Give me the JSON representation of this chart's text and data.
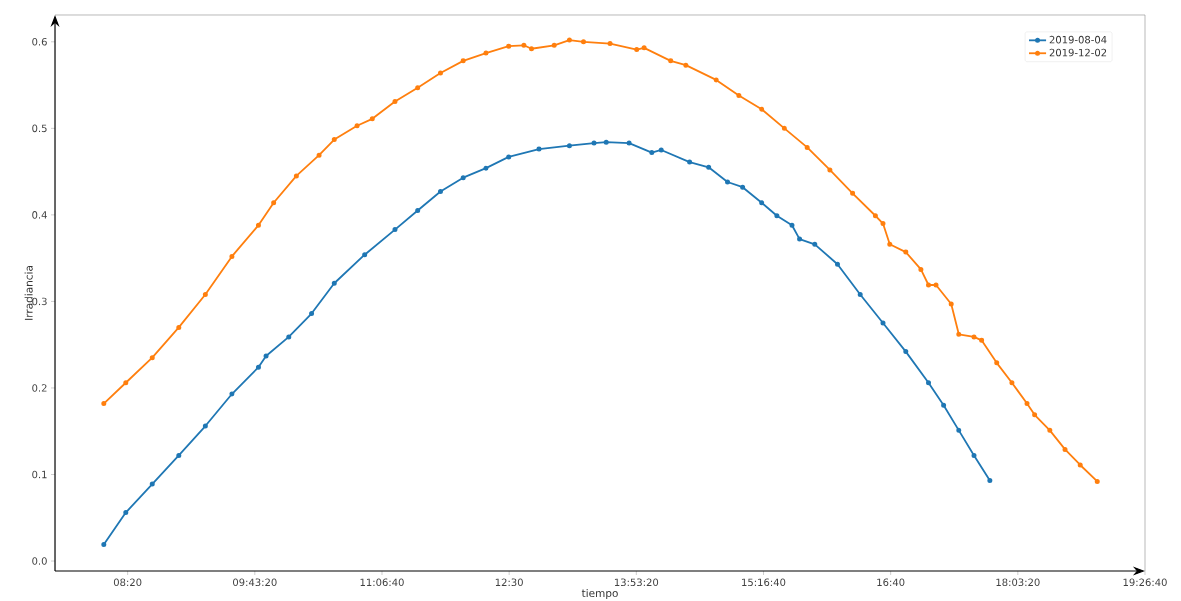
{
  "chart_data": {
    "type": "line",
    "xlabel": "tiempo",
    "ylabel": "Irradiancia",
    "xlim": [
      7.54,
      19.4444
    ],
    "ylim": [
      -0.0115,
      0.631
    ],
    "xticks": [
      {
        "value": 8.3333,
        "label": "08:20"
      },
      {
        "value": 9.7222,
        "label": "09:43:20"
      },
      {
        "value": 11.1111,
        "label": "11:06:40"
      },
      {
        "value": 12.5,
        "label": "12:30"
      },
      {
        "value": 13.8889,
        "label": "13:53:20"
      },
      {
        "value": 15.2778,
        "label": "15:16:40"
      },
      {
        "value": 16.6667,
        "label": "16:40"
      },
      {
        "value": 18.0556,
        "label": "18:03:20"
      },
      {
        "value": 19.4444,
        "label": "19:26:40"
      }
    ],
    "yticks": [
      {
        "value": 0,
        "label": "0.0"
      },
      0.1,
      0.2,
      0.3,
      0.4,
      0.5,
      0.6
    ],
    "legend": "top right",
    "marker": "circle",
    "line_style": "solid",
    "grid": false,
    "series": [
      {
        "name": "2019-08-04",
        "color": "#1f77b4",
        "x": [
          8.073,
          8.313,
          8.602,
          8.892,
          9.182,
          9.472,
          9.762,
          9.845,
          10.093,
          10.342,
          10.59,
          10.922,
          11.253,
          11.501,
          11.75,
          11.998,
          12.247,
          12.495,
          12.826,
          13.158,
          13.427,
          13.56,
          13.81,
          14.058,
          14.161,
          14.471,
          14.679,
          14.885,
          15.05,
          15.258,
          15.424,
          15.589,
          15.672,
          15.838,
          16.086,
          16.334,
          16.583,
          16.832,
          17.08,
          17.245,
          17.411,
          17.577,
          17.75
        ],
        "values": [
          0.019,
          0.056,
          0.089,
          0.122,
          0.156,
          0.193,
          0.224,
          0.237,
          0.259,
          0.286,
          0.321,
          0.354,
          0.383,
          0.405,
          0.427,
          0.443,
          0.454,
          0.467,
          0.476,
          0.48,
          0.483,
          0.484,
          0.483,
          0.472,
          0.475,
          0.461,
          0.455,
          0.438,
          0.432,
          0.414,
          0.399,
          0.388,
          0.372,
          0.366,
          0.343,
          0.308,
          0.275,
          0.242,
          0.206,
          0.18,
          0.151,
          0.122,
          0.093
        ]
      },
      {
        "name": "2019-12-02",
        "color": "#ff7f0e",
        "x": [
          8.073,
          8.313,
          8.602,
          8.892,
          9.182,
          9.472,
          9.762,
          9.928,
          10.176,
          10.424,
          10.59,
          10.839,
          11.005,
          11.253,
          11.501,
          11.75,
          11.998,
          12.247,
          12.495,
          12.661,
          12.744,
          12.992,
          13.158,
          13.312,
          13.602,
          13.893,
          13.974,
          14.264,
          14.43,
          14.761,
          15.009,
          15.258,
          15.506,
          15.755,
          16.003,
          16.251,
          16.5,
          16.583,
          16.657,
          16.832,
          16.997,
          17.08,
          17.162,
          17.328,
          17.411,
          17.577,
          17.66,
          17.825,
          17.991,
          18.156,
          18.239,
          18.405,
          18.571,
          18.737,
          18.923
        ],
        "values": [
          0.182,
          0.206,
          0.235,
          0.27,
          0.308,
          0.352,
          0.388,
          0.414,
          0.445,
          0.469,
          0.487,
          0.503,
          0.511,
          0.531,
          0.547,
          0.564,
          0.578,
          0.587,
          0.595,
          0.596,
          0.592,
          0.596,
          0.602,
          0.6,
          0.598,
          0.591,
          0.593,
          0.578,
          0.573,
          0.556,
          0.538,
          0.522,
          0.5,
          0.478,
          0.452,
          0.425,
          0.399,
          0.39,
          0.366,
          0.357,
          0.337,
          0.319,
          0.319,
          0.297,
          0.262,
          0.259,
          0.255,
          0.229,
          0.206,
          0.182,
          0.169,
          0.151,
          0.129,
          0.111,
          0.092
        ]
      }
    ]
  }
}
